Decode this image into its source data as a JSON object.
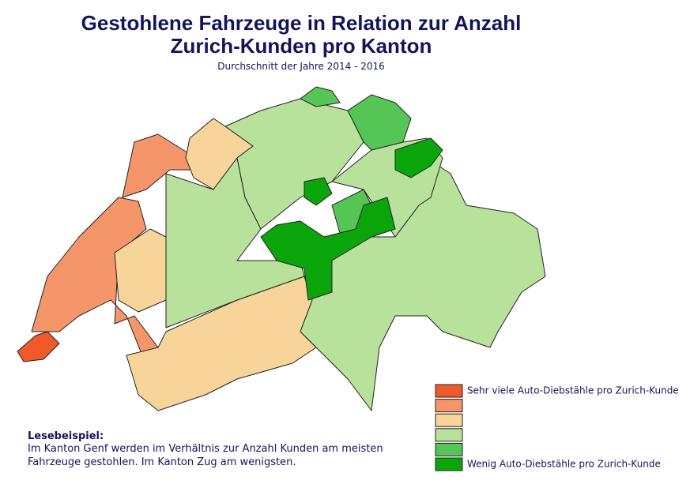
{
  "header": {
    "title_lines": [
      "Gestohlene Fahrzeuge in Relation zur Anzahl",
      "Zurich-Kunden pro Kanton"
    ],
    "subtitle": "Durchschnitt der Jahre 2014 - 2016"
  },
  "legend": {
    "items": [
      {
        "color": "#f05a28",
        "label": "Sehr viele Auto-Diebstähle pro Zurich-Kunde"
      },
      {
        "color": "#f4956a"
      },
      {
        "color": "#f7d49a"
      },
      {
        "color": "#b8e19c"
      },
      {
        "color": "#55c655"
      },
      {
        "color": "#0aa50a",
        "label": "Wenig Auto-Diebstähle pro Zurich-Kunde"
      }
    ]
  },
  "reading_example": {
    "title": "Lesebeispiel:",
    "lines": [
      "Im Kanton Genf werden im Verhältnis zur Anzahl Kunden am meisten",
      "Fahrzeuge gestohlen. Im Kanton Zug am wenigsten."
    ]
  }
}
